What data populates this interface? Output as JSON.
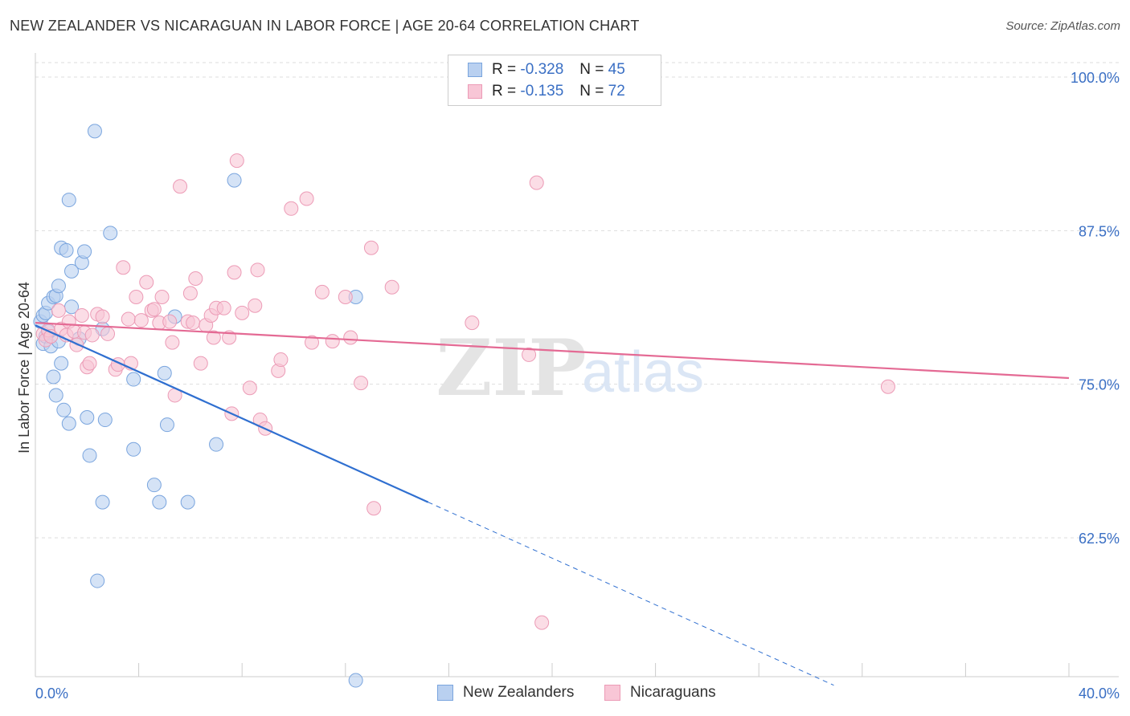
{
  "header": {
    "title": "NEW ZEALANDER VS NICARAGUAN IN LABOR FORCE | AGE 20-64 CORRELATION CHART",
    "source": "Source: ZipAtlas.com"
  },
  "watermark": {
    "zip": "ZIP",
    "atlas": "atlas"
  },
  "legend": {
    "r_label": "R =",
    "n_label": "N =",
    "rows": [
      {
        "r": "-0.328",
        "n": "45"
      },
      {
        "r": "-0.135",
        "n": "72"
      }
    ]
  },
  "colors": {
    "blue_fill": "#b9d0f0",
    "blue_stroke": "#7aa5de",
    "blue_line": "#2f6fd0",
    "pink_fill": "#f8c6d6",
    "pink_stroke": "#ec9bb6",
    "pink_line": "#e46a94",
    "axis_label": "#3a6fc4",
    "grid": "#dddddd"
  },
  "chart_data": {
    "type": "scatter",
    "title": "NEW ZEALANDER VS NICARAGUAN IN LABOR FORCE | AGE 20-64 CORRELATION CHART",
    "xlabel": "",
    "ylabel": "In Labor Force | Age 20-64",
    "xlim": [
      0,
      40
    ],
    "ylim": [
      51,
      102
    ],
    "x_tick_labels": [
      "0.0%",
      "40.0%"
    ],
    "y_ticks": [
      62.5,
      75.0,
      87.5,
      100.0
    ],
    "y_tick_labels": [
      "62.5%",
      "75.0%",
      "87.5%",
      "100.0%"
    ],
    "grid": true,
    "series": [
      {
        "name": "New Zealanders",
        "r": -0.328,
        "n": 45,
        "trend": {
          "x0": 0,
          "y0": 79.8,
          "x1": 15.2,
          "y1": 65.4,
          "dash_x1": 30.9,
          "dash_y1": 50.5
        },
        "points": [
          [
            0.2,
            80.1
          ],
          [
            0.3,
            80.6
          ],
          [
            0.3,
            78.3
          ],
          [
            0.4,
            80.8
          ],
          [
            0.4,
            78.9
          ],
          [
            0.5,
            81.6
          ],
          [
            0.5,
            79.3
          ],
          [
            0.6,
            78.1
          ],
          [
            0.7,
            82.1
          ],
          [
            0.7,
            75.6
          ],
          [
            0.8,
            74.1
          ],
          [
            0.8,
            82.2
          ],
          [
            0.9,
            83.0
          ],
          [
            0.9,
            78.5
          ],
          [
            1.0,
            76.7
          ],
          [
            1.0,
            86.1
          ],
          [
            1.1,
            72.9
          ],
          [
            1.2,
            85.9
          ],
          [
            1.3,
            71.8
          ],
          [
            1.3,
            90.0
          ],
          [
            1.4,
            84.2
          ],
          [
            1.4,
            81.3
          ],
          [
            1.7,
            78.7
          ],
          [
            1.8,
            84.9
          ],
          [
            1.9,
            85.8
          ],
          [
            2.0,
            72.3
          ],
          [
            2.1,
            69.2
          ],
          [
            2.3,
            95.6
          ],
          [
            2.4,
            59.0
          ],
          [
            2.6,
            79.5
          ],
          [
            2.7,
            72.1
          ],
          [
            2.9,
            87.3
          ],
          [
            3.8,
            75.4
          ],
          [
            3.8,
            69.7
          ],
          [
            4.6,
            66.8
          ],
          [
            4.8,
            65.4
          ],
          [
            5.0,
            75.9
          ],
          [
            5.1,
            71.7
          ],
          [
            5.4,
            80.5
          ],
          [
            5.9,
            65.4
          ],
          [
            7.0,
            70.1
          ],
          [
            7.7,
            91.6
          ],
          [
            12.4,
            82.1
          ],
          [
            12.4,
            50.9
          ],
          [
            2.6,
            65.4
          ]
        ]
      },
      {
        "name": "Nicaraguans",
        "r": -0.135,
        "n": 72,
        "trend": {
          "x0": 0,
          "y0": 80.0,
          "x1": 40,
          "y1": 75.5
        },
        "points": [
          [
            0.3,
            79.1
          ],
          [
            0.4,
            78.6
          ],
          [
            0.5,
            79.4
          ],
          [
            0.6,
            78.9
          ],
          [
            0.9,
            81.0
          ],
          [
            1.0,
            79.5
          ],
          [
            1.2,
            79.0
          ],
          [
            1.3,
            80.1
          ],
          [
            1.5,
            79.3
          ],
          [
            1.6,
            78.2
          ],
          [
            1.8,
            80.6
          ],
          [
            1.9,
            79.2
          ],
          [
            2.0,
            76.4
          ],
          [
            2.1,
            76.7
          ],
          [
            2.2,
            79.0
          ],
          [
            2.4,
            80.7
          ],
          [
            2.6,
            80.5
          ],
          [
            2.8,
            79.1
          ],
          [
            3.1,
            76.2
          ],
          [
            3.2,
            76.6
          ],
          [
            3.4,
            84.5
          ],
          [
            3.6,
            80.3
          ],
          [
            3.7,
            76.7
          ],
          [
            3.9,
            82.1
          ],
          [
            4.1,
            80.2
          ],
          [
            4.3,
            83.3
          ],
          [
            4.5,
            81.0
          ],
          [
            4.6,
            81.1
          ],
          [
            4.8,
            80.0
          ],
          [
            4.9,
            82.1
          ],
          [
            5.2,
            80.1
          ],
          [
            5.3,
            78.4
          ],
          [
            5.4,
            74.1
          ],
          [
            5.6,
            91.1
          ],
          [
            5.9,
            80.1
          ],
          [
            6.0,
            82.4
          ],
          [
            6.1,
            80.0
          ],
          [
            6.2,
            83.6
          ],
          [
            6.4,
            76.7
          ],
          [
            6.6,
            79.8
          ],
          [
            6.8,
            80.6
          ],
          [
            6.9,
            78.8
          ],
          [
            7.0,
            81.2
          ],
          [
            7.3,
            81.2
          ],
          [
            7.5,
            78.8
          ],
          [
            7.6,
            72.6
          ],
          [
            7.7,
            84.1
          ],
          [
            7.8,
            93.2
          ],
          [
            8.0,
            80.8
          ],
          [
            8.3,
            74.7
          ],
          [
            8.5,
            81.4
          ],
          [
            8.6,
            84.3
          ],
          [
            8.7,
            72.1
          ],
          [
            8.9,
            71.4
          ],
          [
            9.4,
            76.1
          ],
          [
            9.5,
            77.0
          ],
          [
            9.9,
            89.3
          ],
          [
            10.5,
            90.1
          ],
          [
            10.7,
            78.4
          ],
          [
            11.1,
            82.5
          ],
          [
            11.5,
            78.5
          ],
          [
            12.0,
            82.1
          ],
          [
            12.2,
            78.8
          ],
          [
            12.6,
            75.1
          ],
          [
            13.0,
            86.1
          ],
          [
            13.1,
            64.9
          ],
          [
            13.8,
            82.9
          ],
          [
            16.9,
            80.0
          ],
          [
            19.1,
            77.4
          ],
          [
            19.4,
            91.4
          ],
          [
            19.6,
            55.6
          ],
          [
            33.0,
            74.8
          ]
        ]
      }
    ]
  },
  "bottom_legend": {
    "items": [
      {
        "label": "New Zealanders"
      },
      {
        "label": "Nicaraguans"
      }
    ]
  }
}
